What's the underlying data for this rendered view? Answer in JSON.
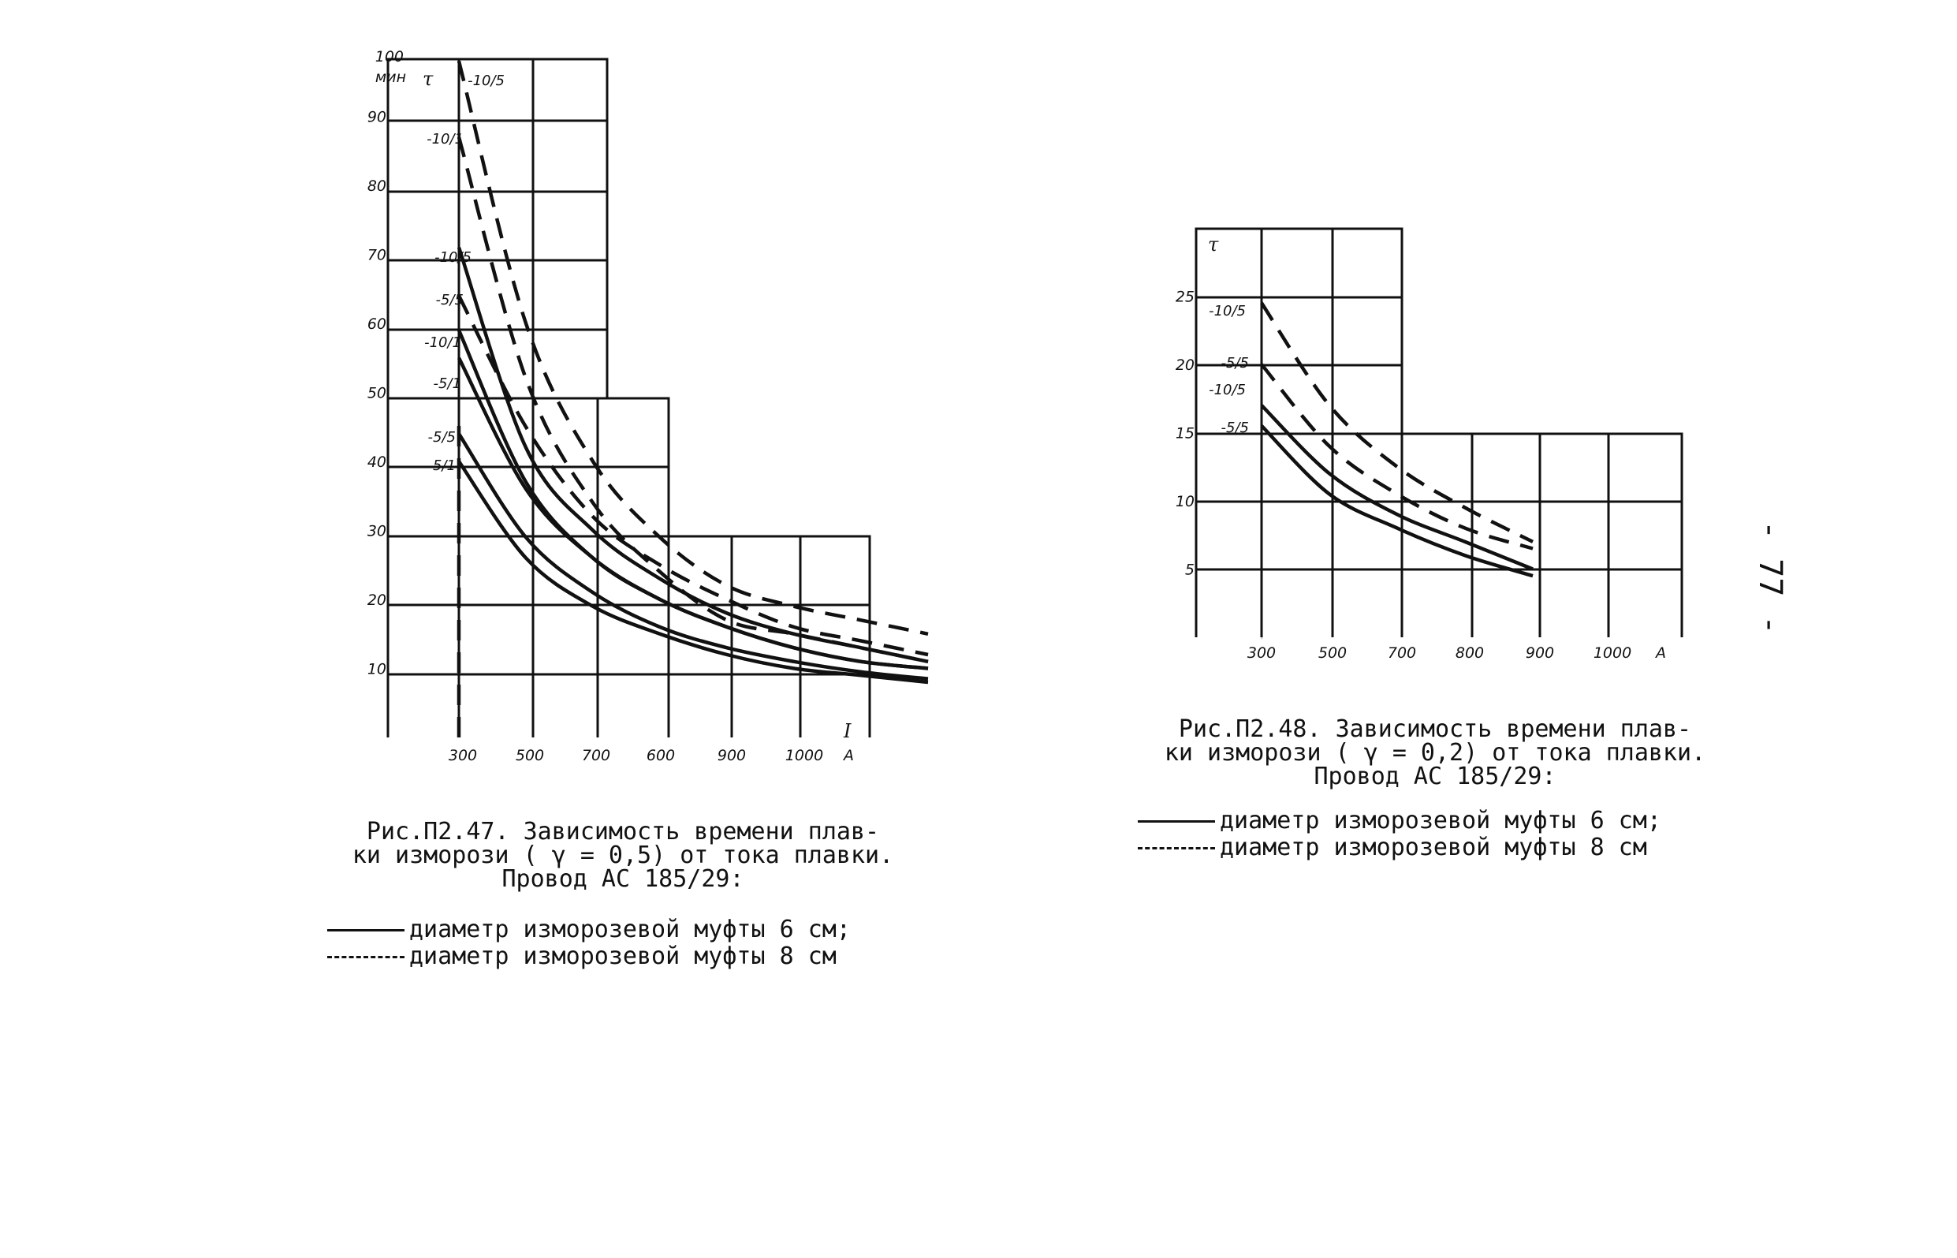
{
  "page_number": "- 77 -",
  "chart_data": [
    {
      "type": "line",
      "ylabel": "τ",
      "y_unit_top": "100",
      "y_unit": "мин",
      "xlabel": "I",
      "x_unit": "А",
      "x_ticks": [
        "300",
        "500",
        "700",
        "600",
        "900",
        "1000"
      ],
      "y_ticks": [
        10,
        20,
        30,
        40,
        50,
        60,
        70,
        80,
        90
      ],
      "xlim": [
        300,
        1000
      ],
      "ylim": [
        0,
        100
      ],
      "grid": true,
      "series": [
        {
          "name": "-10/5",
          "style": "dashed",
          "x": [
            300,
            400,
            500,
            600,
            700,
            800,
            900,
            1000
          ],
          "y": [
            98,
            60,
            40,
            29,
            22,
            19,
            17,
            15
          ]
        },
        {
          "name": "-10/1",
          "style": "dashed",
          "x": [
            300,
            400,
            500,
            600,
            700,
            800,
            900,
            1000
          ],
          "y": [
            87,
            52,
            34,
            24,
            17,
            15,
            13,
            11
          ]
        },
        {
          "name": "-10/5",
          "style": "solid",
          "x": [
            300,
            400,
            500,
            600,
            700,
            800,
            900,
            1000
          ],
          "y": [
            71,
            42,
            30,
            23,
            18,
            15,
            13,
            11
          ]
        },
        {
          "name": "-5/5",
          "style": "dashed",
          "x": [
            300,
            400,
            500,
            600,
            700,
            800,
            900,
            1000
          ],
          "y": [
            64,
            45,
            32,
            25,
            20,
            16,
            14,
            12
          ]
        },
        {
          "name": "-10/1",
          "style": "solid",
          "x": [
            300,
            400,
            500,
            600,
            700,
            800,
            900,
            1000
          ],
          "y": [
            59,
            37,
            26,
            20,
            16,
            13,
            11,
            10
          ]
        },
        {
          "name": "-5/1",
          "style": "solid",
          "x": [
            300,
            400,
            500,
            600,
            700,
            800,
            900,
            1000
          ],
          "y": [
            55,
            36,
            26,
            20,
            16,
            13,
            11,
            10
          ]
        },
        {
          "name": "-5/5",
          "style": "solid",
          "x": [
            300,
            400,
            500,
            600,
            700,
            800,
            900,
            1000
          ],
          "y": [
            44,
            29,
            21,
            16,
            13,
            11,
            9.5,
            8.5
          ]
        },
        {
          "name": "-5/1",
          "style": "solid",
          "x": [
            300,
            400,
            500,
            600,
            700,
            800,
            900,
            1000
          ],
          "y": [
            40,
            26,
            19,
            15,
            12,
            10,
            9,
            8
          ]
        }
      ],
      "caption": "Рис.П2.47. Зависимость времени плав-\nки изморози ( γ = 0,5) от тока плавки.\nПровод АС 185/29:",
      "legend": [
        {
          "style": "solid",
          "label": "диаметр изморозевой муфты 6 см;"
        },
        {
          "style": "dashed",
          "label": "диаметр изморозевой муфты 8 см"
        }
      ]
    },
    {
      "type": "line",
      "ylabel": "τ",
      "xlabel": "",
      "x_unit": "А",
      "x_ticks": [
        "300",
        "500",
        "700",
        "800",
        "900",
        "1000"
      ],
      "y_ticks": [
        5,
        10,
        15,
        20,
        25
      ],
      "xlim": [
        300,
        1000
      ],
      "ylim": [
        0,
        30
      ],
      "grid": true,
      "series": [
        {
          "name": "-10/5",
          "style": "dashed",
          "x": [
            300,
            400,
            500,
            600,
            700
          ],
          "y": [
            24.5,
            17,
            12.5,
            9.5,
            7
          ]
        },
        {
          "name": "-5/5",
          "style": "dashed",
          "x": [
            300,
            400,
            500,
            600,
            700
          ],
          "y": [
            20,
            14,
            10.5,
            8,
            6.5
          ]
        },
        {
          "name": "-10/5",
          "style": "solid",
          "x": [
            300,
            400,
            500,
            600,
            700
          ],
          "y": [
            17,
            12,
            9,
            7,
            5
          ]
        },
        {
          "name": "-5/5",
          "style": "solid",
          "x": [
            300,
            400,
            500,
            600,
            700
          ],
          "y": [
            15.5,
            10.5,
            8,
            6,
            4.5
          ]
        }
      ],
      "caption": "Рис.П2.48. Зависимость времени плав-\nки изморози ( γ = 0,2) от тока плавки.\nПровод АС 185/29:",
      "legend": [
        {
          "style": "solid",
          "label": "диаметр изморозевой муфты 6 см;"
        },
        {
          "style": "dashed",
          "label": "диаметр изморозевой муфты 8 см"
        }
      ]
    }
  ]
}
